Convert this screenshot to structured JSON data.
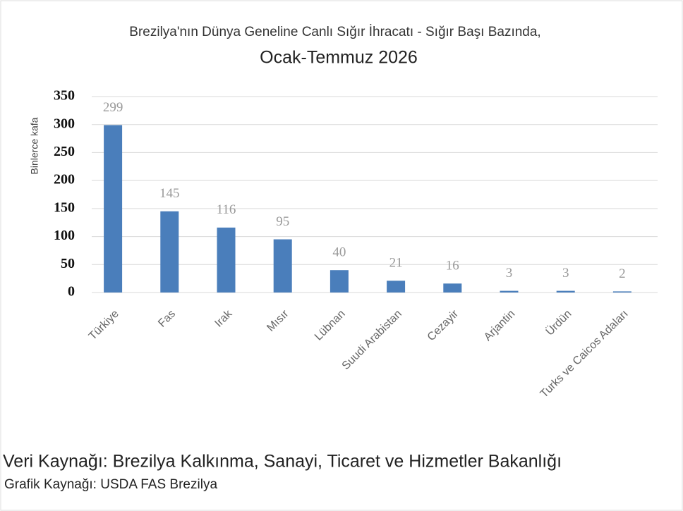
{
  "chart_data": {
    "type": "bar",
    "title": "Brezilya'nın Dünya Geneline Canlı Sığır İhracatı - Sığır Başı Bazında,",
    "subtitle": "Ocak-Temmuz 2026",
    "ylabel": "Binlerce kafa",
    "categories": [
      "Türkiye",
      "Fas",
      "Irak",
      "Mısır",
      "Lübnan",
      "Suudi Arabistan",
      "Cezayir",
      "Arjantin",
      "Ürdün",
      "Turks ve Caicos Adaları"
    ],
    "values": [
      299,
      145,
      116,
      95,
      40,
      21,
      16,
      3,
      3,
      2
    ],
    "color": "#4a7ebb",
    "ylim": [
      0,
      350
    ],
    "yticks": [
      0,
      50,
      100,
      150,
      200,
      250,
      300,
      350
    ],
    "grid": true,
    "source": "Veri Kaynağı: Brezilya Kalkınma, Sanayi, Ticaret ve Hizmetler Bakanlığı",
    "credit": "Grafik Kaynağı: USDA FAS Brezilya"
  }
}
